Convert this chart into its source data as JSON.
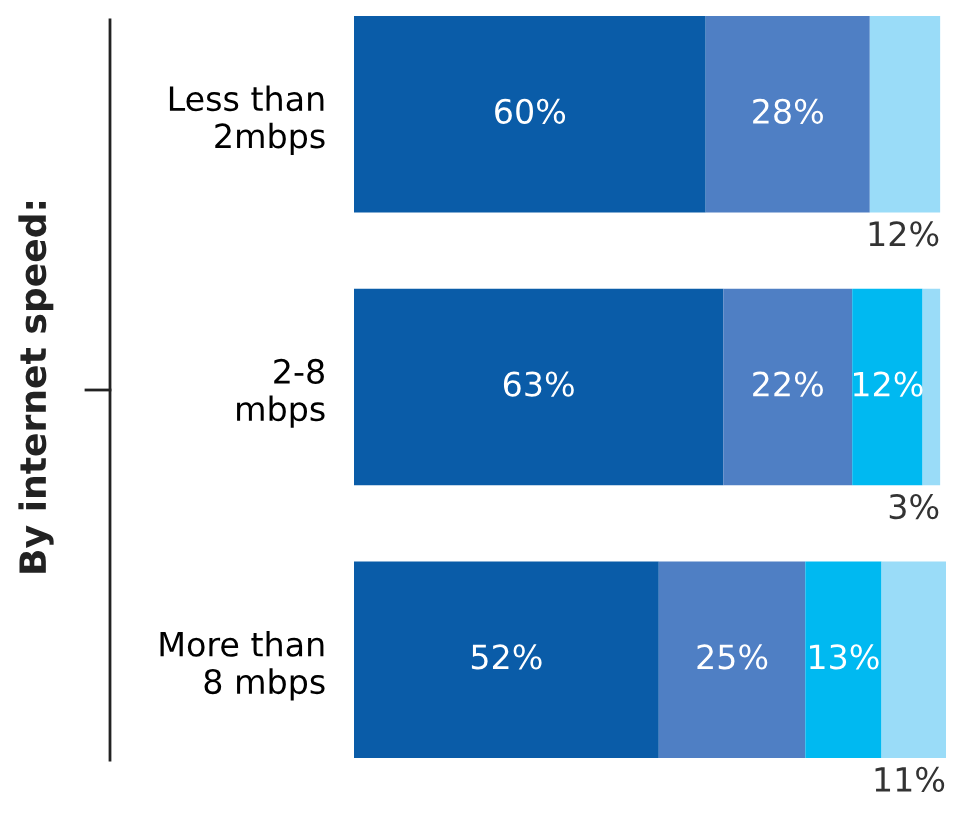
{
  "chart_data": {
    "type": "bar",
    "orientation": "horizontal",
    "stacked": true,
    "ylabel": "By internet speed:",
    "tick_labels": "y",
    "categories": [
      "Less than\n2mbps",
      "2-8\nmbps",
      "More than\n8 mbps"
    ],
    "series": [
      {
        "color": "#0a5ca8",
        "values": [
          60,
          63,
          52
        ],
        "value_labels": [
          "60%",
          "63%",
          "52%"
        ]
      },
      {
        "color": "#4f7fc4",
        "values": [
          28,
          22,
          25
        ],
        "value_labels": [
          "28%",
          "22%",
          "25%"
        ]
      },
      {
        "color": "#00b9f1",
        "values": [
          null,
          12,
          13
        ],
        "value_labels": [
          null,
          "12%",
          "13%"
        ]
      },
      {
        "color": "#9adcf8",
        "values": [
          12,
          3,
          11
        ],
        "value_labels": [
          "12%",
          "3%",
          "11%"
        ]
      }
    ]
  }
}
